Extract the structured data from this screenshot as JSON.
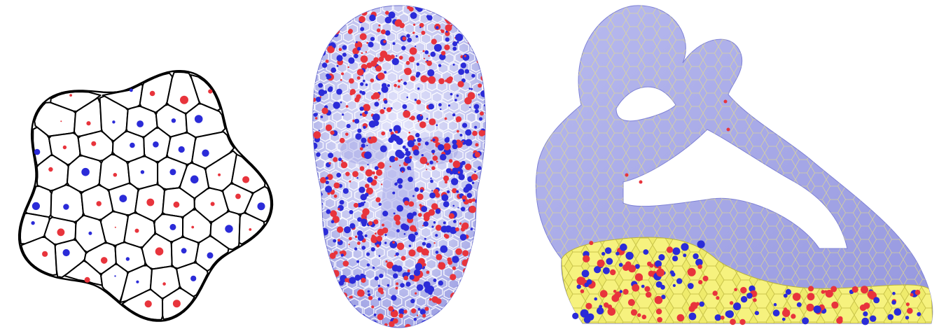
{
  "figure": {
    "panels": [
      {
        "id": "voronoi-2d",
        "kind": "2D restricted Voronoi diagram with weighted sites",
        "cell_edge_color": "#000000",
        "fill_color": "#ffffff"
      },
      {
        "id": "head-mesh",
        "kind": "3D head surface with Voronoi cells",
        "surface_color": "#c9cbf2",
        "edge_color": "#ffffff"
      },
      {
        "id": "sculpture",
        "kind": "3D sculpture with partial cell fill",
        "surface_color": "#a9abe9",
        "edge_color": "#e6e07a",
        "fill_region_color": "#f0ec6e"
      }
    ],
    "colors": {
      "positive_site": "#e8343c",
      "negative_site": "#2b2bd8"
    }
  }
}
